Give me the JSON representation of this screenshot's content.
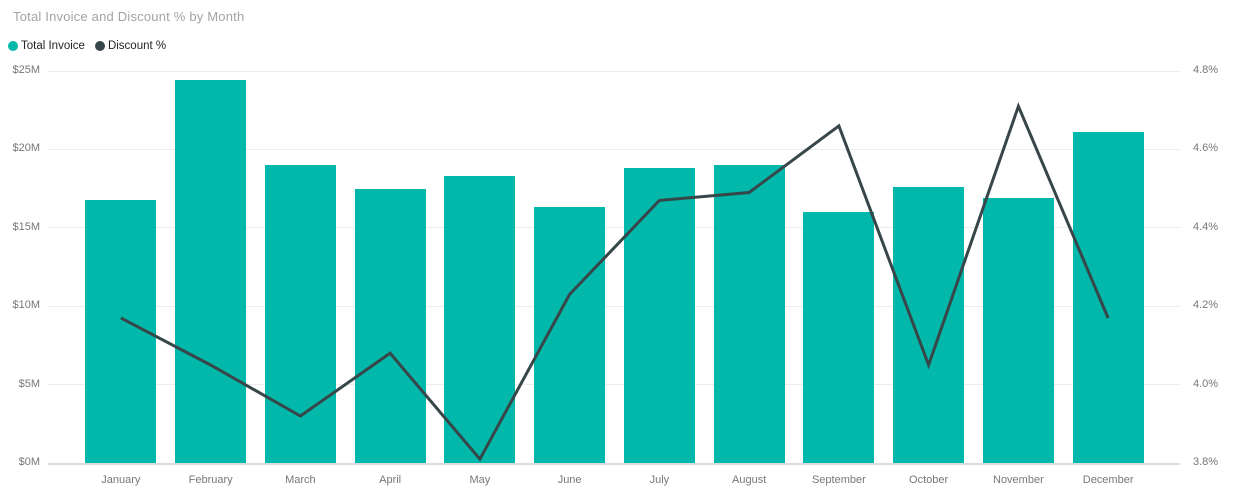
{
  "title": "Total Invoice and Discount % by Month",
  "legend": [
    {
      "label": "Total Invoice",
      "color": "#01B8AA"
    },
    {
      "label": "Discount %",
      "color": "#374649"
    }
  ],
  "colors": {
    "bar": "#01B8AA",
    "line": "#374649",
    "axis_text": "#777777",
    "title_text": "#a3a3a3",
    "background": "#ffffff"
  },
  "chart_data": {
    "type": "bar",
    "subtype": "column-line combo",
    "title": "Total Invoice and Discount % by Month",
    "categories": [
      "January",
      "February",
      "March",
      "April",
      "May",
      "June",
      "July",
      "August",
      "September",
      "October",
      "November",
      "December"
    ],
    "series": [
      {
        "name": "Total Invoice",
        "type": "bar",
        "axis": "left",
        "color": "#01B8AA",
        "unit": "$M",
        "values": [
          16.8,
          24.4,
          19.0,
          17.5,
          18.3,
          16.3,
          18.8,
          19.0,
          16.0,
          17.6,
          16.9,
          21.1
        ]
      },
      {
        "name": "Discount %",
        "type": "line",
        "axis": "right",
        "color": "#374649",
        "unit": "%",
        "values": [
          4.17,
          4.05,
          3.92,
          4.08,
          3.81,
          4.23,
          4.47,
          4.49,
          4.66,
          4.05,
          4.71,
          4.17
        ]
      }
    ],
    "left_axis": {
      "min": 0,
      "max": 25,
      "tick_values": [
        0,
        5,
        10,
        15,
        20,
        25
      ],
      "tick_labels": [
        "$0M",
        "$5M",
        "$10M",
        "$15M",
        "$20M",
        "$25M"
      ]
    },
    "right_axis": {
      "min": 3.8,
      "max": 4.8,
      "tick_values": [
        3.8,
        4.0,
        4.2,
        4.4,
        4.6,
        4.8
      ],
      "tick_labels": [
        "3.8%",
        "4.0%",
        "4.2%",
        "4.4%",
        "4.6%",
        "4.8%"
      ]
    },
    "grid": true,
    "legend_position": "top-left",
    "xlabel": "",
    "ylabel": ""
  }
}
